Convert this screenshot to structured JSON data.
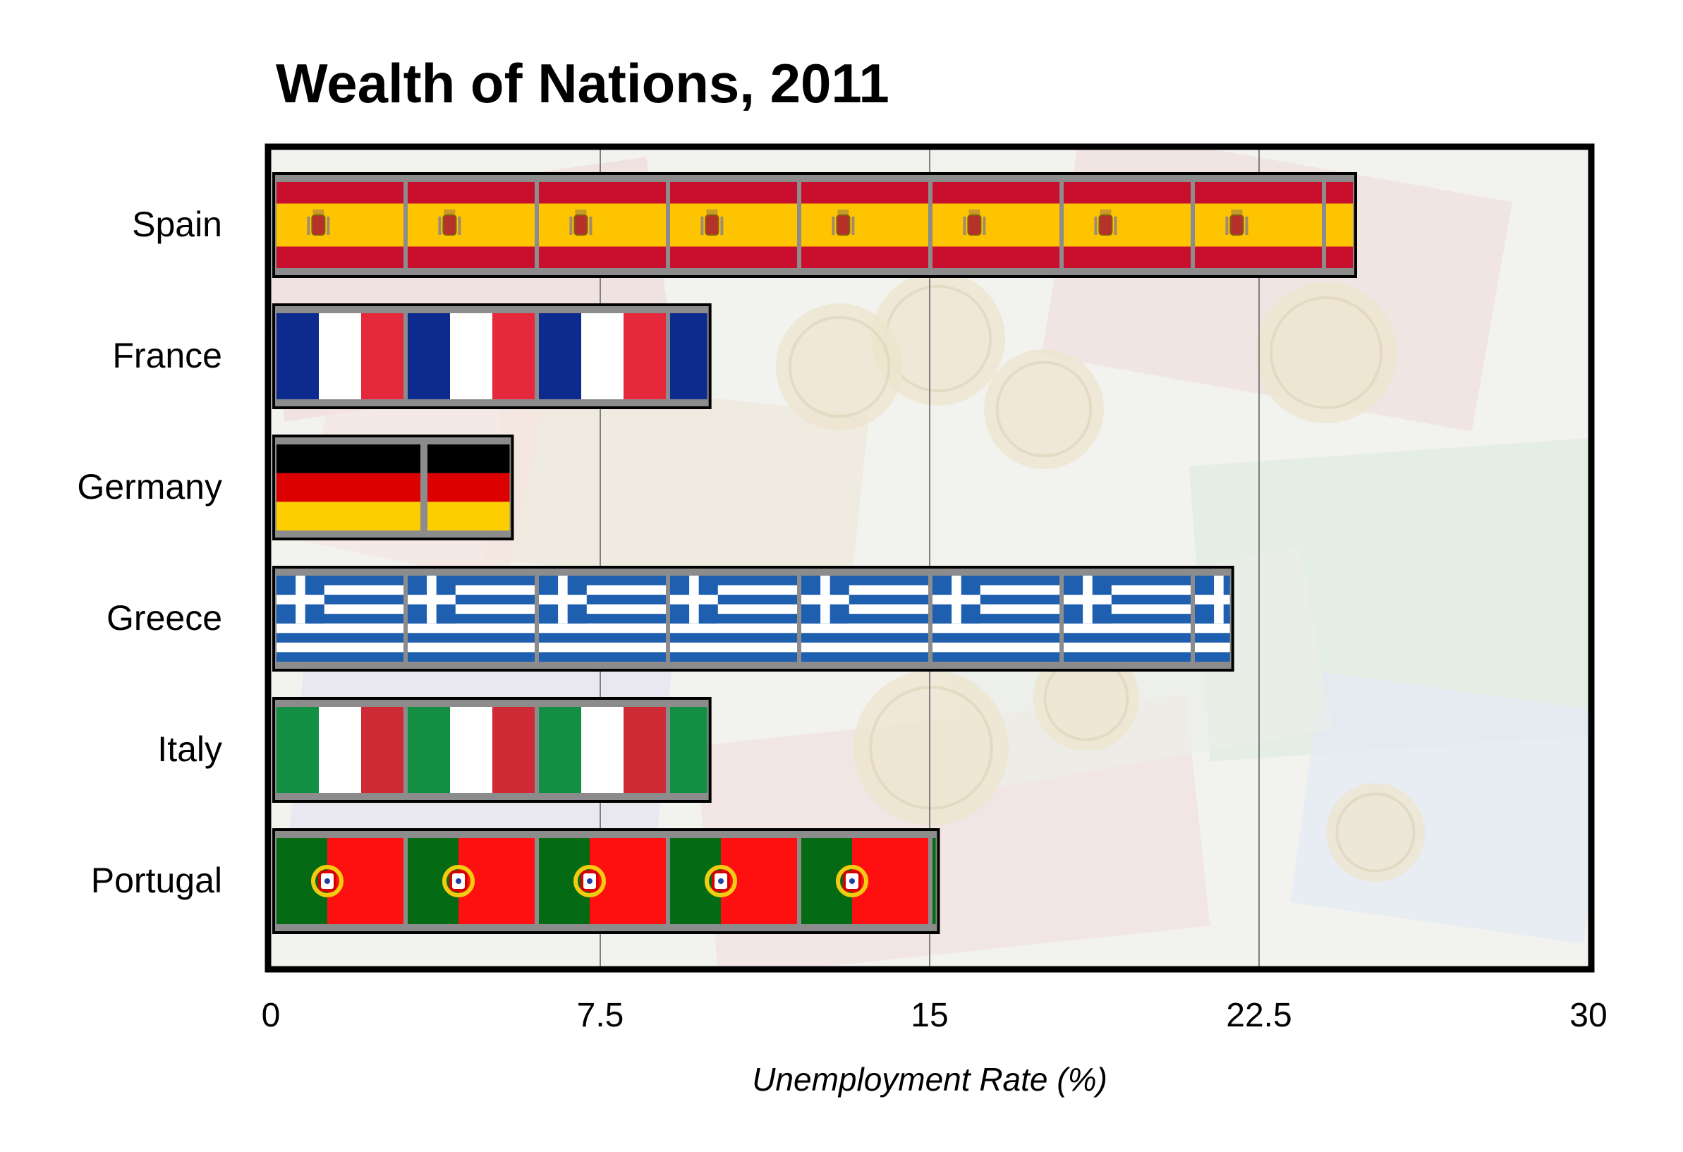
{
  "chart_data": {
    "type": "bar",
    "orientation": "horizontal",
    "title": "Wealth of Nations, 2011",
    "xlabel": "Unemployment Rate (%)",
    "ylabel": "",
    "xlim": [
      0,
      30
    ],
    "x_ticks": [
      "0",
      "7.5",
      "15",
      "22.5",
      "30"
    ],
    "grid": true,
    "legend": "none",
    "categories": [
      "Spain",
      "France",
      "Germany",
      "Greece",
      "Italy",
      "Portugal"
    ],
    "values": [
      24.7,
      10.0,
      5.5,
      21.9,
      10.0,
      15.2
    ],
    "bar_fill": [
      "spain-flag",
      "france-flag",
      "germany-flag",
      "greece-flag",
      "italy-flag",
      "portugal-flag"
    ],
    "colors": {
      "spain_red": "#c8102e",
      "spain_yellow": "#ffc400",
      "france_blue": "#0d2a8f",
      "france_red": "#e6283c",
      "germany_black": "#000000",
      "germany_red": "#dd0000",
      "germany_gold": "#ffce00",
      "greece_blue": "#1f5fb0",
      "italy_green": "#138f44",
      "italy_red": "#cf2b37",
      "portugal_green": "#046a13",
      "portugal_red": "#ff1010",
      "separator": "#8c8c8c",
      "background_photo": "euro-banknotes-and-coins"
    }
  }
}
